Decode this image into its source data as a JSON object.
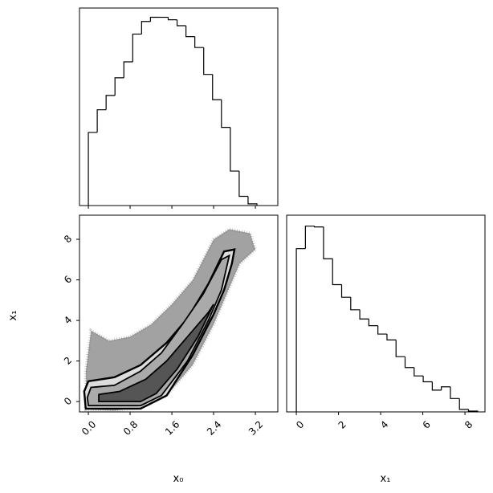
{
  "chart_data": [
    {
      "type": "histogram",
      "color": "#000000",
      "bins": [
        0,
        0.17,
        0.34,
        0.51,
        0.68,
        0.85,
        1.02,
        1.19,
        1.36,
        1.53,
        1.7,
        1.87,
        2.04,
        2.21,
        2.38,
        2.55,
        2.72,
        2.89,
        3.06,
        3.23
      ],
      "counts": [
        87,
        114,
        131,
        152,
        171,
        204,
        219,
        224,
        224,
        221,
        214,
        201,
        188,
        156,
        126,
        93,
        41,
        11,
        2
      ],
      "xlim": [
        -0.17,
        3.63
      ],
      "ylim": [
        0,
        235
      ],
      "xticks": [
        0,
        0.8,
        1.6,
        2.4,
        3.2
      ]
    },
    {
      "type": "contour-scatter",
      "xlabel": "x₀",
      "ylabel": "x₁",
      "xlim": [
        -0.17,
        3.63
      ],
      "ylim": [
        -0.51,
        9.19
      ],
      "xticks": [
        {
          "value": 0,
          "label": "0.0"
        },
        0.8,
        1.6,
        2.4,
        3.2
      ],
      "yticks": [
        0,
        2,
        4,
        6,
        8
      ],
      "cloud": {
        "fill": "#555555",
        "x": [
          -0.05,
          0.5,
          1.0,
          1.5,
          2.0,
          2.4,
          2.7,
          2.9,
          3.2,
          3.1,
          2.7,
          2.4,
          2.0,
          1.6,
          1.2,
          0.8,
          0.4,
          0.05,
          -0.05
        ],
        "y": [
          -0.4,
          -0.45,
          -0.3,
          0.3,
          1.8,
          3.8,
          5.6,
          6.8,
          7.5,
          8.3,
          8.5,
          8.0,
          6.0,
          4.8,
          3.8,
          3.2,
          3.0,
          3.5,
          1.5
        ]
      },
      "contours": [
        {
          "fill": "#dddddd",
          "x": [
            -0.05,
            1.0,
            1.5,
            2.0,
            2.4,
            2.6,
            2.75,
            2.8,
            2.6,
            2.3,
            1.9,
            1.5,
            1.0,
            0.5,
            0.0,
            -0.08
          ],
          "y": [
            -0.35,
            -0.35,
            0.3,
            2.3,
            4.3,
            5.5,
            6.8,
            7.5,
            7.4,
            5.8,
            4.1,
            2.9,
            1.8,
            1.2,
            1.0,
            0.5
          ]
        },
        {
          "fill": "#aaaaaa",
          "x": [
            0.0,
            1.0,
            1.4,
            1.9,
            2.3,
            2.55,
            2.7,
            2.55,
            2.2,
            1.8,
            1.4,
            1.0,
            0.5,
            0.05,
            -0.02
          ],
          "y": [
            -0.2,
            -0.2,
            0.3,
            2.0,
            4.0,
            5.5,
            7.2,
            7.0,
            5.3,
            3.8,
            2.4,
            1.5,
            0.8,
            0.7,
            0.2
          ]
        },
        {
          "fill": "#555555",
          "x": [
            0.2,
            1.0,
            1.3,
            1.7,
            2.1,
            2.4,
            2.3,
            1.9,
            1.5,
            1.1,
            0.6,
            0.2
          ],
          "y": [
            0.0,
            0.0,
            0.4,
            1.6,
            3.2,
            4.8,
            4.4,
            3.2,
            2.0,
            1.1,
            0.5,
            0.35
          ]
        }
      ]
    },
    {
      "type": "histogram",
      "color": "#000000",
      "xlabel": "x₁",
      "bins": [
        0,
        0.43,
        0.86,
        1.29,
        1.72,
        2.15,
        2.58,
        3.01,
        3.44,
        3.87,
        4.3,
        4.73,
        5.16,
        5.59,
        6.02,
        6.45,
        6.88,
        7.31,
        7.74,
        8.17,
        8.6
      ],
      "counts": [
        195,
        222,
        221,
        183,
        152,
        137,
        122,
        111,
        103,
        93,
        86,
        66,
        53,
        43,
        36,
        26,
        30,
        16,
        3,
        1
      ],
      "xlim": [
        -0.46,
        8.95
      ],
      "ylim": [
        0,
        235
      ],
      "xticks": [
        0,
        2,
        4,
        6,
        8
      ]
    }
  ]
}
